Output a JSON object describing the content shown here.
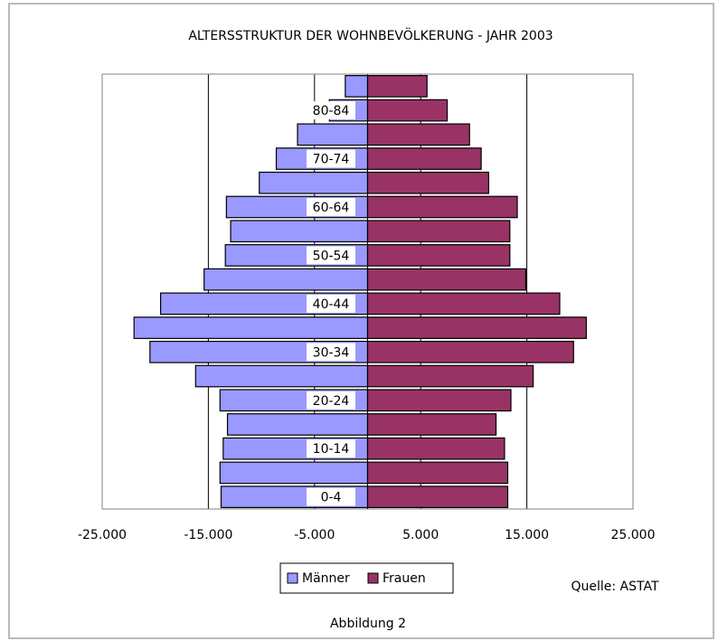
{
  "chart_data": {
    "type": "pyramid",
    "title": "ALTERSSTRUKTUR DER WOHNBEVÖLKERUNG - JAHR 2003",
    "categories": [
      "0-4",
      null,
      "10-14",
      null,
      "20-24",
      null,
      "30-34",
      null,
      "40-44",
      null,
      "50-54",
      null,
      "60-64",
      null,
      "70-74",
      null,
      "80-84",
      null
    ],
    "series": [
      {
        "name": "Männer",
        "color": "#9999ff",
        "values": [
          -13800,
          -13900,
          -13600,
          -13200,
          -13900,
          -16200,
          -20500,
          -22000,
          -19500,
          -15400,
          -13400,
          -12900,
          -13300,
          -10200,
          -8600,
          -6600,
          -3600,
          -2100
        ]
      },
      {
        "name": "Frauen",
        "color": "#993366",
        "values": [
          13200,
          13200,
          12900,
          12100,
          13500,
          15600,
          19400,
          20600,
          18100,
          14900,
          13400,
          13400,
          14100,
          11400,
          10700,
          9600,
          7500,
          5600
        ]
      }
    ],
    "xlim": [
      -25000,
      25000
    ],
    "xticks": [
      {
        "value": -25000,
        "label": "-25.000"
      },
      {
        "value": -15000,
        "label": "-15.000"
      },
      {
        "value": -5000,
        "label": "-5.000"
      },
      {
        "value": 5000,
        "label": "5.000"
      },
      {
        "value": 15000,
        "label": "15.000"
      },
      {
        "value": 25000,
        "label": "25.000"
      }
    ],
    "grid": true,
    "legend": "bottom",
    "source": "Quelle: ASTAT",
    "caption": "Abbildung 2"
  }
}
